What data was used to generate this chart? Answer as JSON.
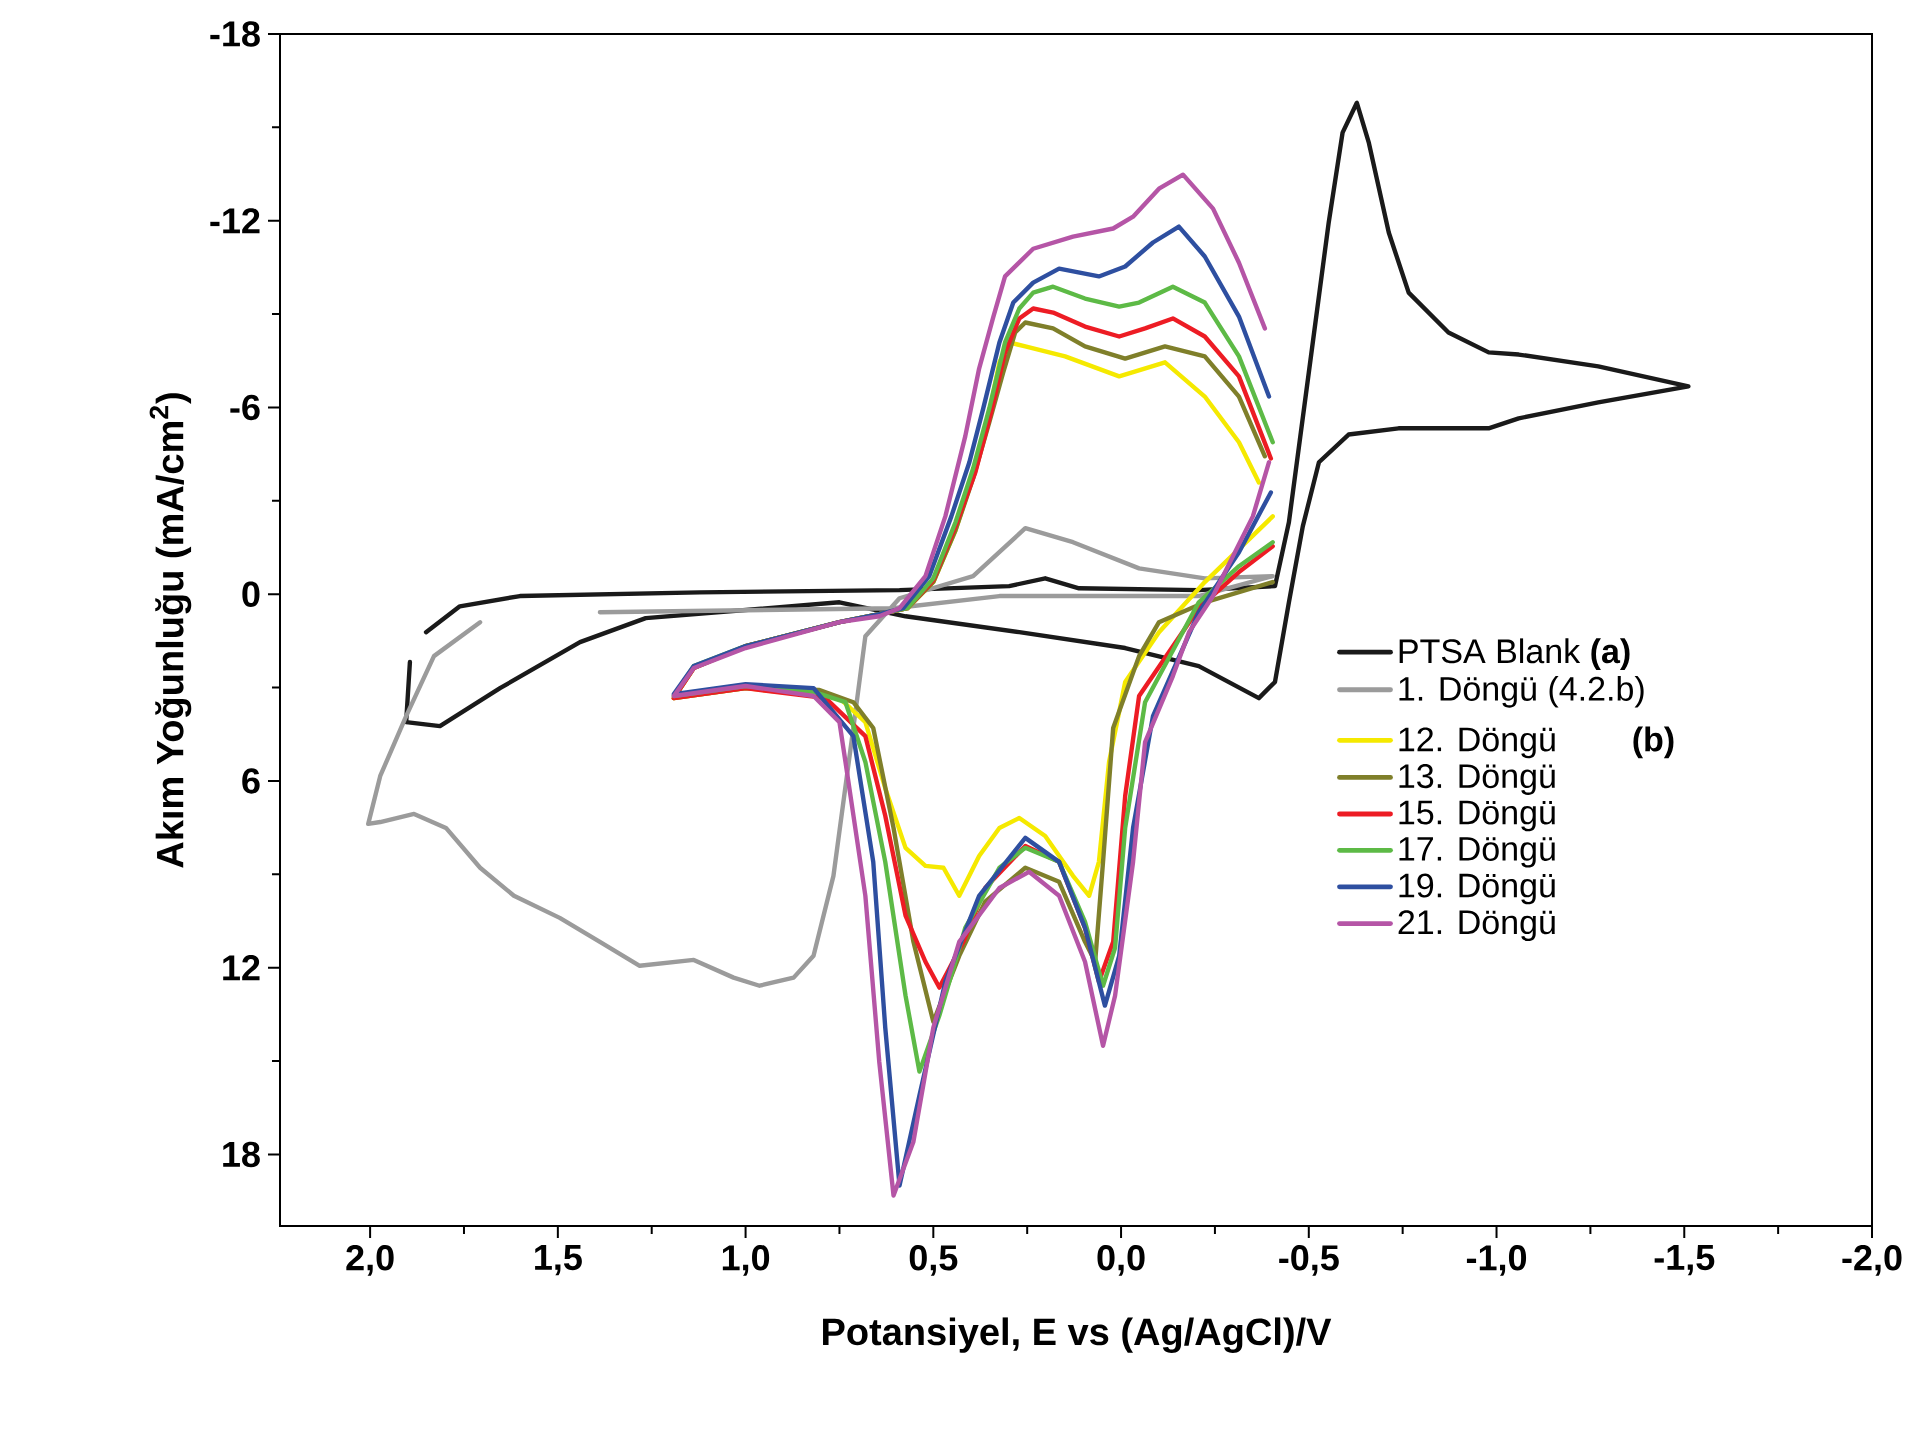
{
  "chart_data": {
    "type": "line",
    "xlabel": "Potansiyel, E vs (Ag/AgCl)/V",
    "ylabel": "Akım Yoğunluğu (mA/cm$^{2}$)",
    "xlim": [
      2.24,
      -2.0
    ],
    "ylim": [
      20.3,
      -18
    ],
    "xticks": [
      {
        "value": 2,
        "label": "2,0"
      },
      {
        "value": 1.5,
        "label": "1,5"
      },
      {
        "value": 1,
        "label": "1,0"
      },
      {
        "value": 0.5,
        "label": "0,5"
      },
      {
        "value": 0,
        "label": "0,0"
      },
      {
        "value": -0.5,
        "label": "-0,5"
      },
      {
        "value": -1,
        "label": "-1,0"
      },
      {
        "value": -1.5,
        "label": "-1,5"
      },
      {
        "value": -2,
        "label": "-2,0"
      }
    ],
    "yticks": [
      -18,
      -12,
      -6,
      0,
      6,
      12,
      18
    ],
    "legend": "right",
    "line_style": "solid",
    "annotations": [
      "(b)"
    ],
    "series": [
      {
        "name": "PTSA Blank **(a)**",
        "color": "#1a1a1a",
        "x": [
          1.894,
          1.904,
          1.814,
          1.654,
          1.441,
          1.266,
          0.75,
          0.574,
          0.271,
          -0.011,
          -0.207,
          -0.367,
          -0.41,
          -0.447,
          -0.484,
          -0.527,
          -0.606,
          -0.739,
          -0.979,
          -1.059,
          -1.271,
          -1.511,
          -1.271,
          -1.059,
          -0.979,
          -0.872,
          -0.766,
          -0.713,
          -0.66,
          -0.628,
          -0.59,
          -0.553,
          -0.5,
          -0.447,
          -0.41,
          -0.207,
          0.112,
          0.202,
          0.298,
          0.59,
          1.122,
          1.601,
          1.761,
          1.851
        ],
        "values": [
          2.18,
          4.11,
          4.24,
          3.02,
          1.54,
          0.77,
          0.26,
          0.71,
          1.22,
          1.73,
          2.31,
          3.34,
          2.82,
          0.26,
          -2.18,
          -4.24,
          -5.13,
          -5.33,
          -5.33,
          -5.65,
          -6.16,
          -6.68,
          -7.32,
          -7.7,
          -7.77,
          -8.41,
          -9.69,
          -11.62,
          -14.5,
          -15.79,
          -14.83,
          -11.94,
          -7.12,
          -2.31,
          -0.26,
          -0.13,
          -0.19,
          -0.51,
          -0.26,
          -0.13,
          -0.06,
          0.06,
          0.39,
          1.22
        ]
      },
      {
        "name": "1. Döngü (4.2.b)",
        "color": "#9b9b9b",
        "x": [
          1.707,
          1.83,
          1.904,
          1.973,
          2.005,
          1.973,
          1.883,
          1.798,
          1.707,
          1.617,
          1.495,
          1.388,
          1.282,
          1.138,
          1.032,
          0.963,
          0.872,
          0.819,
          0.766,
          0.713,
          0.681,
          0.59,
          0.394,
          0.255,
          0.128,
          -0.048,
          -0.223,
          -0.404,
          -0.207,
          0.324,
          0.606,
          1.388
        ],
        "values": [
          0.9,
          1.99,
          3.92,
          5.84,
          7.38,
          7.32,
          7.06,
          7.51,
          8.79,
          9.69,
          10.4,
          11.17,
          11.94,
          11.75,
          12.32,
          12.58,
          12.32,
          11.62,
          9.05,
          4.3,
          1.35,
          0.13,
          -0.58,
          -2.12,
          -1.67,
          -0.83,
          -0.51,
          -0.58,
          0.06,
          0.06,
          0.45,
          0.58
        ]
      },
      {
        "name": "12. Döngü",
        "color": "#f5e900",
        "x": [
          -0.367,
          -0.314,
          -0.223,
          -0.117,
          0.005,
          0.149,
          0.255,
          0.298,
          0.324,
          0.351,
          0.394,
          0.441,
          0.5,
          0.569,
          0.644,
          0.75,
          1.0,
          1.138,
          1.191,
          1.0,
          0.75,
          0.681,
          0.628,
          0.574,
          0.521,
          0.473,
          0.431,
          0.378,
          0.324,
          0.271,
          0.202,
          0.128,
          0.085,
          0.059,
          0.032,
          -0.011,
          -0.101,
          -0.223,
          -0.404
        ],
        "values": [
          -3.59,
          -4.88,
          -6.35,
          -7.45,
          -7.0,
          -7.64,
          -7.96,
          -8.09,
          -7.45,
          -5.84,
          -3.79,
          -2.05,
          -0.39,
          0.45,
          0.64,
          0.9,
          1.67,
          2.37,
          3.34,
          3.02,
          3.34,
          4.11,
          6.23,
          8.15,
          8.73,
          8.79,
          9.69,
          8.41,
          7.51,
          7.19,
          7.77,
          9.05,
          9.69,
          8.6,
          5.39,
          2.82,
          1.22,
          -0.39,
          -2.5
        ]
      },
      {
        "name": "13. Döngü",
        "color": "#7f7f2a",
        "x": [
          -0.383,
          -0.314,
          -0.223,
          -0.117,
          -0.011,
          0.096,
          0.181,
          0.255,
          0.282,
          0.314,
          0.351,
          0.394,
          0.441,
          0.5,
          0.569,
          0.644,
          0.75,
          1.0,
          1.138,
          1.191,
          1.0,
          0.803,
          0.713,
          0.66,
          0.606,
          0.553,
          0.5,
          0.431,
          0.362,
          0.255,
          0.165,
          0.096,
          0.069,
          0.048,
          0.021,
          -0.048,
          -0.101,
          -0.223,
          -0.404
        ],
        "values": [
          -4.43,
          -6.35,
          -7.64,
          -7.96,
          -7.57,
          -7.96,
          -8.54,
          -8.73,
          -8.41,
          -7.12,
          -5.52,
          -3.72,
          -2.05,
          -0.39,
          0.45,
          0.64,
          0.9,
          1.67,
          2.37,
          3.34,
          3.02,
          3.08,
          3.47,
          4.3,
          7.51,
          11.17,
          13.74,
          11.62,
          9.88,
          8.79,
          9.24,
          11.17,
          11.81,
          8.6,
          4.3,
          1.99,
          0.9,
          0.26,
          -0.39
        ]
      },
      {
        "name": "15. Döngü",
        "color": "#ed1c24",
        "x": [
          -0.399,
          -0.314,
          -0.223,
          -0.138,
          -0.064,
          0.005,
          0.096,
          0.181,
          0.234,
          0.271,
          0.309,
          0.346,
          0.388,
          0.441,
          0.5,
          0.569,
          0.644,
          0.75,
          1.0,
          1.138,
          1.191,
          1.0,
          0.787,
          0.681,
          0.628,
          0.574,
          0.521,
          0.484,
          0.42,
          0.362,
          0.255,
          0.165,
          0.096,
          0.059,
          0.021,
          -0.011,
          -0.048,
          -0.207,
          -0.314,
          -0.404
        ],
        "values": [
          -4.36,
          -7.0,
          -8.28,
          -8.86,
          -8.54,
          -8.28,
          -8.6,
          -9.05,
          -9.18,
          -8.86,
          -7.77,
          -5.84,
          -3.92,
          -2.18,
          -0.45,
          0.45,
          0.64,
          0.9,
          1.67,
          2.37,
          3.34,
          3.02,
          3.34,
          4.56,
          7.12,
          10.33,
          11.81,
          12.64,
          11.17,
          9.44,
          8.09,
          8.6,
          10.72,
          12.45,
          11.17,
          6.48,
          3.27,
          0.45,
          -0.71,
          -1.54
        ]
      },
      {
        "name": "17. Döngü",
        "color": "#5dba46",
        "x": [
          -0.404,
          -0.314,
          -0.223,
          -0.138,
          -0.048,
          0.005,
          0.096,
          0.181,
          0.234,
          0.271,
          0.309,
          0.351,
          0.394,
          0.441,
          0.5,
          0.569,
          0.644,
          0.75,
          1.0,
          1.138,
          1.191,
          1.0,
          0.819,
          0.734,
          0.681,
          0.628,
          0.574,
          0.537,
          0.484,
          0.415,
          0.324,
          0.255,
          0.165,
          0.096,
          0.048,
          0.016,
          -0.011,
          -0.064,
          -0.207,
          -0.314,
          -0.404
        ],
        "values": [
          -4.88,
          -7.64,
          -9.37,
          -9.88,
          -9.37,
          -9.24,
          -9.5,
          -9.88,
          -9.69,
          -9.18,
          -8.09,
          -5.97,
          -4.04,
          -2.31,
          -0.51,
          0.45,
          0.64,
          0.9,
          1.67,
          2.31,
          3.27,
          2.95,
          3.14,
          3.47,
          5.39,
          8.6,
          12.9,
          15.34,
          13.54,
          10.72,
          8.79,
          8.15,
          8.6,
          10.53,
          12.58,
          11.36,
          7.51,
          3.47,
          0.26,
          -0.9,
          -1.67
        ]
      },
      {
        "name": "19. Döngü",
        "color": "#2e4fa0",
        "x": [
          -0.394,
          -0.314,
          -0.223,
          -0.154,
          -0.085,
          -0.011,
          0.059,
          0.165,
          0.234,
          0.287,
          0.324,
          0.367,
          0.404,
          0.452,
          0.511,
          0.58,
          0.644,
          0.75,
          1.0,
          1.138,
          1.191,
          1.0,
          0.819,
          0.713,
          0.66,
          0.628,
          0.59,
          0.537,
          0.468,
          0.378,
          0.255,
          0.165,
          0.096,
          0.043,
          0.005,
          -0.032,
          -0.085,
          -0.207,
          -0.314,
          -0.399
        ],
        "values": [
          -6.35,
          -8.92,
          -10.85,
          -11.81,
          -11.3,
          -10.53,
          -10.21,
          -10.46,
          -10.01,
          -9.37,
          -8.09,
          -5.97,
          -4.24,
          -2.5,
          -0.58,
          0.45,
          0.64,
          0.9,
          1.67,
          2.31,
          3.21,
          2.89,
          3.02,
          4.56,
          8.6,
          13.93,
          19.0,
          16.11,
          12.45,
          9.69,
          7.83,
          8.6,
          10.72,
          13.22,
          11.62,
          7.51,
          3.92,
          0.58,
          -1.35,
          -3.27
        ]
      },
      {
        "name": "21. Döngü",
        "color": "#b555a6",
        "x": [
          -0.383,
          -0.314,
          -0.245,
          -0.165,
          -0.101,
          -0.032,
          0.021,
          0.128,
          0.234,
          0.309,
          0.34,
          0.378,
          0.415,
          0.468,
          0.521,
          0.59,
          0.644,
          0.75,
          1.0,
          1.138,
          1.191,
          1.0,
          0.819,
          0.75,
          0.734,
          0.681,
          0.644,
          0.606,
          0.553,
          0.5,
          0.431,
          0.324,
          0.245,
          0.165,
          0.096,
          0.048,
          0.016,
          -0.032,
          -0.064,
          -0.138,
          -0.181,
          -0.245,
          -0.351,
          -0.394
        ],
        "values": [
          -8.54,
          -10.65,
          -12.39,
          -13.48,
          -13.03,
          -12.13,
          -11.75,
          -11.49,
          -11.1,
          -10.21,
          -8.92,
          -7.25,
          -5.07,
          -2.5,
          -0.58,
          0.45,
          0.71,
          0.9,
          1.73,
          2.37,
          3.27,
          2.95,
          3.27,
          4.11,
          5.39,
          9.69,
          15.02,
          19.32,
          17.59,
          13.93,
          11.17,
          9.44,
          8.92,
          9.69,
          11.81,
          14.51,
          12.9,
          8.6,
          4.75,
          2.63,
          1.22,
          0.06,
          -2.5,
          -4.24
        ]
      }
    ]
  }
}
